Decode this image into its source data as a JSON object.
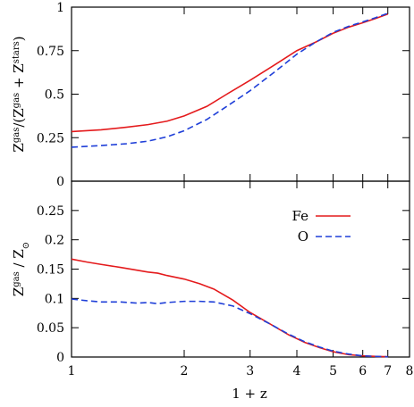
{
  "chart_data": [
    {
      "type": "line",
      "panel": "top",
      "xscale": "log",
      "xlim": [
        1,
        8
      ],
      "ylim": [
        0,
        1
      ],
      "yticks": [
        0,
        0.25,
        0.5,
        0.75,
        1
      ],
      "ytick_labels": [
        "0",
        "0.25",
        "0.5",
        "0.75",
        "1"
      ],
      "ylabel": {
        "base": "Z",
        "sup1": "gas",
        "mid": "/(Z",
        "sup2": "gas",
        "plus": " + Z",
        "sup3": "stars",
        "end": ")"
      },
      "grid": false,
      "series": [
        {
          "name": "Fe",
          "color": "#e41a1c",
          "dash": "solid",
          "x": [
            1.0,
            1.2,
            1.4,
            1.6,
            1.8,
            2.0,
            2.3,
            2.6,
            3.0,
            3.5,
            4.0,
            4.5,
            5.0,
            5.5,
            6.0,
            6.5,
            7.0
          ],
          "y": [
            0.285,
            0.295,
            0.31,
            0.325,
            0.345,
            0.375,
            0.43,
            0.5,
            0.58,
            0.67,
            0.75,
            0.8,
            0.85,
            0.885,
            0.91,
            0.935,
            0.96
          ]
        },
        {
          "name": "O",
          "color": "#1f3fd8",
          "dash": "dashed",
          "x": [
            1.0,
            1.2,
            1.4,
            1.6,
            1.8,
            2.0,
            2.3,
            2.6,
            3.0,
            3.5,
            4.0,
            4.5,
            5.0,
            5.5,
            6.0,
            6.5,
            7.0
          ],
          "y": [
            0.195,
            0.205,
            0.215,
            0.23,
            0.255,
            0.29,
            0.355,
            0.43,
            0.52,
            0.63,
            0.73,
            0.8,
            0.855,
            0.89,
            0.915,
            0.94,
            0.965
          ]
        }
      ]
    },
    {
      "type": "line",
      "panel": "bottom",
      "xscale": "log",
      "xlim": [
        1,
        8
      ],
      "ylim": [
        0,
        0.3
      ],
      "xticks": [
        1,
        2,
        3,
        4,
        5,
        6,
        7,
        8
      ],
      "xtick_labels": [
        "1",
        "2",
        "3",
        "4",
        "5",
        "6",
        "7",
        "8"
      ],
      "yticks": [
        0,
        0.05,
        0.1,
        0.15,
        0.2,
        0.25
      ],
      "ytick_labels": [
        "0",
        "0.05",
        "0.1",
        "0.15",
        "0.2",
        "0.25"
      ],
      "xlabel": "1 + z",
      "ylabel": {
        "base": "Z",
        "sup": "gas",
        "mid": " / Z",
        "sub": "⊙"
      },
      "legend_position": "top-right",
      "grid": false,
      "series": [
        {
          "name": "Fe",
          "color": "#e41a1c",
          "dash": "solid",
          "x": [
            1.0,
            1.1,
            1.2,
            1.35,
            1.5,
            1.6,
            1.7,
            1.8,
            2.0,
            2.2,
            2.4,
            2.7,
            3.0,
            3.4,
            3.8,
            4.2,
            4.6,
            5.0,
            5.5,
            6.0,
            6.5,
            7.0
          ],
          "y": [
            0.167,
            0.162,
            0.158,
            0.153,
            0.148,
            0.145,
            0.143,
            0.139,
            0.133,
            0.125,
            0.116,
            0.097,
            0.076,
            0.056,
            0.038,
            0.025,
            0.016,
            0.009,
            0.004,
            0.002,
            0.001,
            0.0005
          ]
        },
        {
          "name": "O",
          "color": "#1f3fd8",
          "dash": "dashed",
          "x": [
            1.0,
            1.1,
            1.2,
            1.35,
            1.5,
            1.6,
            1.7,
            1.8,
            2.0,
            2.2,
            2.4,
            2.7,
            3.0,
            3.4,
            3.8,
            4.2,
            4.6,
            5.0,
            5.5,
            6.0,
            6.5,
            7.0
          ],
          "y": [
            0.099,
            0.096,
            0.094,
            0.094,
            0.092,
            0.093,
            0.091,
            0.093,
            0.095,
            0.095,
            0.094,
            0.087,
            0.074,
            0.056,
            0.039,
            0.026,
            0.017,
            0.01,
            0.005,
            0.002,
            0.001,
            0.0005
          ]
        }
      ]
    }
  ]
}
